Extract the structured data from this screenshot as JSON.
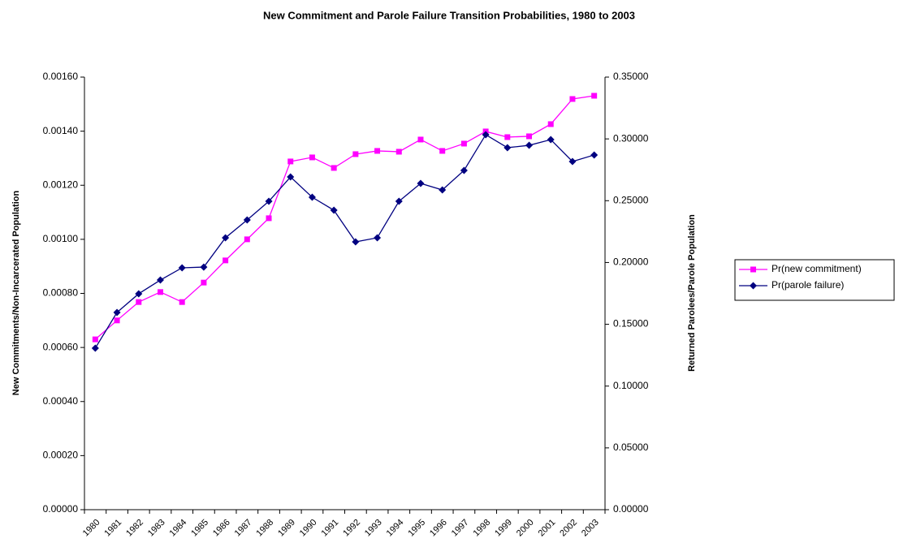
{
  "chart_data": {
    "type": "line",
    "title": "New Commitment and Parole Failure Transition Probabilities, 1980 to 2003",
    "y_label": "New Commitments/Non-Incarcerated Population",
    "y2_label": "Returned Parolees/Parole Population",
    "categories": [
      "1980",
      "1981",
      "1982",
      "1983",
      "1984",
      "1985",
      "1986",
      "1987",
      "1988",
      "1989",
      "1990",
      "1991",
      "1992",
      "1993",
      "1994",
      "1995",
      "1996",
      "1997",
      "1998",
      "1999",
      "2000",
      "2001",
      "2002",
      "2003"
    ],
    "series": [
      {
        "name": "Pr(new commitment)",
        "color": "#ff00ff",
        "marker": "square",
        "values": [
          0.00063,
          0.0007,
          0.000768,
          0.000805,
          0.000768,
          0.00084,
          0.000922,
          0.001,
          0.001078,
          0.001288,
          0.001303,
          0.001264,
          0.001315,
          0.001327,
          0.001324,
          0.001369,
          0.001327,
          0.001354,
          0.001399,
          0.001378,
          0.001381,
          0.001426,
          0.001519,
          0.001531
        ]
      },
      {
        "name": "Pr(parole failure)",
        "color": "#000080",
        "marker": "diamond",
        "axis": "y2",
        "values": [
          0.1307,
          0.1596,
          0.1747,
          0.1858,
          0.1957,
          0.1963,
          0.22,
          0.2344,
          0.2495,
          0.2692,
          0.2528,
          0.2423,
          0.2167,
          0.22,
          0.2495,
          0.264,
          0.2587,
          0.2745,
          0.3034,
          0.2929,
          0.2948,
          0.2994,
          0.2817,
          0.287
        ]
      }
    ],
    "ylim": [
      0,
      0.0016
    ],
    "yticks": [
      {
        "value": 0,
        "label": "0.00000"
      },
      {
        "value": 0.0002,
        "label": "0.00020"
      },
      {
        "value": 0.0004,
        "label": "0.00040"
      },
      {
        "value": 0.0006,
        "label": "0.00060"
      },
      {
        "value": 0.0008,
        "label": "0.00080"
      },
      {
        "value": 0.001,
        "label": "0.00100"
      },
      {
        "value": 0.0012,
        "label": "0.00120"
      },
      {
        "value": 0.0014,
        "label": "0.00140"
      },
      {
        "value": 0.0016,
        "label": "0.00160"
      }
    ],
    "y2lim": [
      0,
      0.35
    ],
    "y2ticks": [
      {
        "value": 0,
        "label": "0.00000"
      },
      {
        "value": 0.05,
        "label": "0.05000"
      },
      {
        "value": 0.1,
        "label": "0.10000"
      },
      {
        "value": 0.15,
        "label": "0.15000"
      },
      {
        "value": 0.2,
        "label": "0.20000"
      },
      {
        "value": 0.25,
        "label": "0.25000"
      },
      {
        "value": 0.3,
        "label": "0.30000"
      },
      {
        "value": 0.35,
        "label": "0.35000"
      }
    ],
    "grid": false,
    "legend": "right"
  }
}
